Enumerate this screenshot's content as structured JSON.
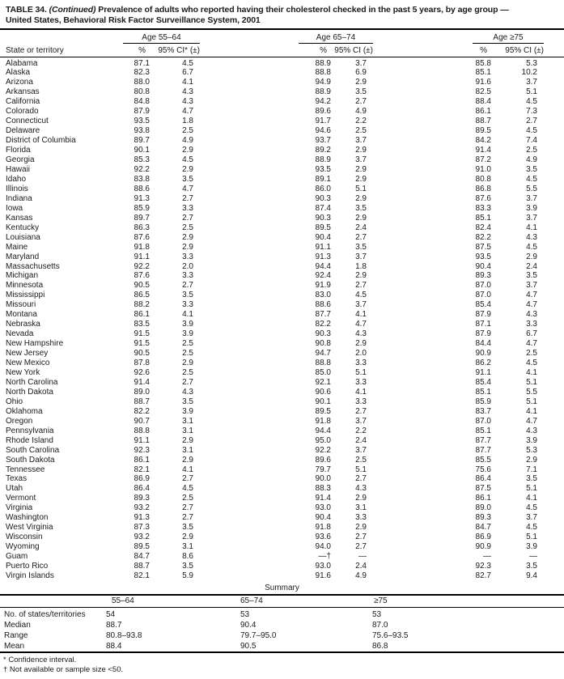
{
  "title": {
    "prefix": "TABLE 34. ",
    "continued": "(Continued)",
    "line1": " Prevalence of adults who reported having their cholesterol checked in the past 5 years, by age group —",
    "line2": "United States, Behavioral Risk Factor Surveillance System, 2001"
  },
  "header": {
    "state_col": "State or territory",
    "groups": [
      {
        "label": "Age 55–64",
        "pct": "%",
        "ci": "95% CI* (±)"
      },
      {
        "label": "Age 65–74",
        "pct": "%",
        "ci": "95% CI (±)"
      },
      {
        "label": "Age ≥75",
        "pct": "%",
        "ci": "95% CI (±)"
      }
    ]
  },
  "rows": [
    {
      "state": "Alabama",
      "values": [
        "87.1",
        "4.5",
        "88.9",
        "3.7",
        "85.8",
        "5.3"
      ]
    },
    {
      "state": "Alaska",
      "values": [
        "82.3",
        "6.7",
        "88.8",
        "6.9",
        "85.1",
        "10.2"
      ]
    },
    {
      "state": "Arizona",
      "values": [
        "88.0",
        "4.1",
        "94.9",
        "2.9",
        "91.6",
        "3.7"
      ]
    },
    {
      "state": "Arkansas",
      "values": [
        "80.8",
        "4.3",
        "88.9",
        "3.5",
        "82.5",
        "5.1"
      ]
    },
    {
      "state": "California",
      "values": [
        "84.8",
        "4.3",
        "94.2",
        "2.7",
        "88.4",
        "4.5"
      ]
    },
    {
      "state": "Colorado",
      "values": [
        "87.9",
        "4.7",
        "89.6",
        "4.9",
        "86.1",
        "7.3"
      ]
    },
    {
      "state": "Connecticut",
      "values": [
        "93.5",
        "1.8",
        "91.7",
        "2.2",
        "88.7",
        "2.7"
      ]
    },
    {
      "state": "Delaware",
      "values": [
        "93.8",
        "2.5",
        "94.6",
        "2.5",
        "89.5",
        "4.5"
      ]
    },
    {
      "state": "District of Columbia",
      "values": [
        "89.7",
        "4.9",
        "93.7",
        "3.7",
        "84.2",
        "7.4"
      ]
    },
    {
      "state": "Florida",
      "values": [
        "90.1",
        "2.9",
        "89.2",
        "2.9",
        "91.4",
        "2.5"
      ]
    },
    {
      "state": "Georgia",
      "values": [
        "85.3",
        "4.5",
        "88.9",
        "3.7",
        "87.2",
        "4.9"
      ]
    },
    {
      "state": "Hawaii",
      "values": [
        "92.2",
        "2.9",
        "93.5",
        "2.9",
        "91.0",
        "3.5"
      ]
    },
    {
      "state": "Idaho",
      "values": [
        "83.8",
        "3.5",
        "89.1",
        "2.9",
        "80.8",
        "4.5"
      ]
    },
    {
      "state": "Illinois",
      "values": [
        "88.6",
        "4.7",
        "86.0",
        "5.1",
        "86.8",
        "5.5"
      ]
    },
    {
      "state": "Indiana",
      "values": [
        "91.3",
        "2.7",
        "90.3",
        "2.9",
        "87.6",
        "3.7"
      ]
    },
    {
      "state": "Iowa",
      "values": [
        "85.9",
        "3.3",
        "87.4",
        "3.5",
        "83.3",
        "3.9"
      ]
    },
    {
      "state": "Kansas",
      "values": [
        "89.7",
        "2.7",
        "90.3",
        "2.9",
        "85.1",
        "3.7"
      ]
    },
    {
      "state": "Kentucky",
      "values": [
        "86.3",
        "2.5",
        "89.5",
        "2.4",
        "82.4",
        "4.1"
      ]
    },
    {
      "state": "Louisiana",
      "values": [
        "87.6",
        "2.9",
        "90.4",
        "2.7",
        "82.2",
        "4.3"
      ]
    },
    {
      "state": "Maine",
      "values": [
        "91.8",
        "2.9",
        "91.1",
        "3.5",
        "87.5",
        "4.5"
      ]
    },
    {
      "state": "Maryland",
      "values": [
        "91.1",
        "3.3",
        "91.3",
        "3.7",
        "93.5",
        "2.9"
      ]
    },
    {
      "state": "Massachusetts",
      "values": [
        "92.2",
        "2.0",
        "94.4",
        "1.8",
        "90.4",
        "2.4"
      ]
    },
    {
      "state": "Michigan",
      "values": [
        "87.6",
        "3.3",
        "92.4",
        "2.9",
        "89.3",
        "3.5"
      ]
    },
    {
      "state": "Minnesota",
      "values": [
        "90.5",
        "2.7",
        "91.9",
        "2.7",
        "87.0",
        "3.7"
      ]
    },
    {
      "state": "Mississippi",
      "values": [
        "86.5",
        "3.5",
        "83.0",
        "4.5",
        "87.0",
        "4.7"
      ]
    },
    {
      "state": "Missouri",
      "values": [
        "88.2",
        "3.3",
        "88.6",
        "3.7",
        "85.4",
        "4.7"
      ]
    },
    {
      "state": "Montana",
      "values": [
        "86.1",
        "4.1",
        "87.7",
        "4.1",
        "87.9",
        "4.3"
      ]
    },
    {
      "state": "Nebraska",
      "values": [
        "83.5",
        "3.9",
        "82.2",
        "4.7",
        "87.1",
        "3.3"
      ]
    },
    {
      "state": "Nevada",
      "values": [
        "91.5",
        "3.9",
        "90.3",
        "4.3",
        "87.9",
        "6.7"
      ]
    },
    {
      "state": "New Hampshire",
      "values": [
        "91.5",
        "2.5",
        "90.8",
        "2.9",
        "84.4",
        "4.7"
      ]
    },
    {
      "state": "New Jersey",
      "values": [
        "90.5",
        "2.5",
        "94.7",
        "2.0",
        "90.9",
        "2.5"
      ]
    },
    {
      "state": "New Mexico",
      "values": [
        "87.8",
        "2.9",
        "88.8",
        "3.3",
        "86.2",
        "4.5"
      ]
    },
    {
      "state": "New York",
      "values": [
        "92.6",
        "2.5",
        "85.0",
        "5.1",
        "91.1",
        "4.1"
      ]
    },
    {
      "state": "North Carolina",
      "values": [
        "91.4",
        "2.7",
        "92.1",
        "3.3",
        "85.4",
        "5.1"
      ]
    },
    {
      "state": "North Dakota",
      "values": [
        "89.0",
        "4.3",
        "90.6",
        "4.1",
        "85.1",
        "5.5"
      ]
    },
    {
      "state": "Ohio",
      "values": [
        "88.7",
        "3.5",
        "90.1",
        "3.3",
        "85.9",
        "5.1"
      ]
    },
    {
      "state": "Oklahoma",
      "values": [
        "82.2",
        "3.9",
        "89.5",
        "2.7",
        "83.7",
        "4.1"
      ]
    },
    {
      "state": "Oregon",
      "values": [
        "90.7",
        "3.1",
        "91.8",
        "3.7",
        "87.0",
        "4.7"
      ]
    },
    {
      "state": "Pennsylvania",
      "values": [
        "88.8",
        "3.1",
        "94.4",
        "2.2",
        "85.1",
        "4.3"
      ]
    },
    {
      "state": "Rhode Island",
      "values": [
        "91.1",
        "2.9",
        "95.0",
        "2.4",
        "87.7",
        "3.9"
      ]
    },
    {
      "state": "South Carolina",
      "values": [
        "92.3",
        "3.1",
        "92.2",
        "3.7",
        "87.7",
        "5.3"
      ]
    },
    {
      "state": "South Dakota",
      "values": [
        "86.1",
        "2.9",
        "89.6",
        "2.5",
        "85.5",
        "2.9"
      ]
    },
    {
      "state": "Tennessee",
      "values": [
        "82.1",
        "4.1",
        "79.7",
        "5.1",
        "75.6",
        "7.1"
      ]
    },
    {
      "state": "Texas",
      "values": [
        "86.9",
        "2.7",
        "90.0",
        "2.7",
        "86.4",
        "3.5"
      ]
    },
    {
      "state": "Utah",
      "values": [
        "86.4",
        "4.5",
        "88.3",
        "4.3",
        "87.5",
        "5.1"
      ]
    },
    {
      "state": "Vermont",
      "values": [
        "89.3",
        "2.5",
        "91.4",
        "2.9",
        "86.1",
        "4.1"
      ]
    },
    {
      "state": "Virginia",
      "values": [
        "93.2",
        "2.7",
        "93.0",
        "3.1",
        "89.0",
        "4.5"
      ]
    },
    {
      "state": "Washington",
      "values": [
        "91.3",
        "2.7",
        "90.4",
        "3.3",
        "89.3",
        "3.7"
      ]
    },
    {
      "state": "West Virginia",
      "values": [
        "87.3",
        "3.5",
        "91.8",
        "2.9",
        "84.7",
        "4.5"
      ]
    },
    {
      "state": "Wisconsin",
      "values": [
        "93.2",
        "2.9",
        "93.6",
        "2.7",
        "86.9",
        "5.1"
      ]
    },
    {
      "state": "Wyoming",
      "values": [
        "89.5",
        "3.1",
        "94.0",
        "2.7",
        "90.9",
        "3.9"
      ]
    },
    {
      "state": "Guam",
      "values": [
        "84.7",
        "8.6",
        "—†",
        "—",
        "—",
        "—"
      ]
    },
    {
      "state": "Puerto Rico",
      "values": [
        "88.7",
        "3.5",
        "93.0",
        "2.4",
        "92.3",
        "3.5"
      ]
    },
    {
      "state": "Virgin Islands",
      "values": [
        "82.1",
        "5.9",
        "91.6",
        "4.9",
        "82.7",
        "9.4"
      ]
    }
  ],
  "summary": {
    "title": "Summary",
    "columns": [
      "55–64",
      "65–74",
      "≥75"
    ],
    "rows": [
      {
        "label": "No. of states/territories",
        "values": [
          "54",
          "53",
          "53"
        ]
      },
      {
        "label": "Median",
        "values": [
          "88.7",
          "90.4",
          "87.0"
        ]
      },
      {
        "label": "Range",
        "values": [
          "80.8–93.8",
          "79.7–95.0",
          "75.6–93.5"
        ]
      },
      {
        "label": "Mean",
        "values": [
          "88.4",
          "90.5",
          "86.8"
        ]
      }
    ]
  },
  "footnotes": [
    "* Confidence interval.",
    "† Not available or sample size <50."
  ]
}
